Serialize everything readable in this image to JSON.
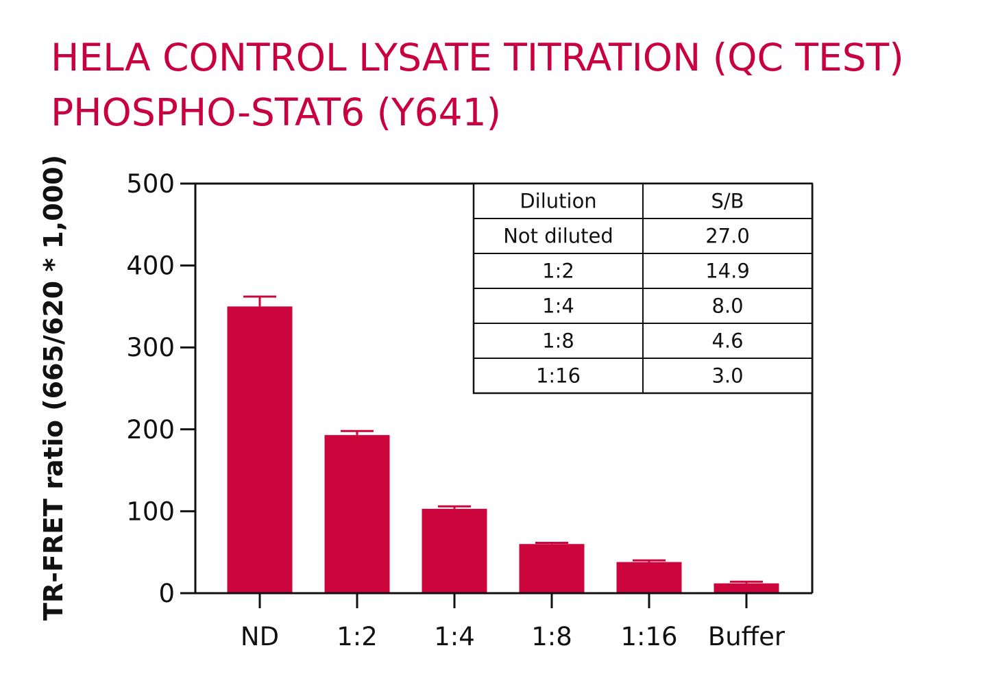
{
  "title_lines": [
    "HELA CONTROL LYSATE TITRATION (QC TEST)",
    "PHOSPHO-STAT6 (Y641)"
  ],
  "colors": {
    "title": "#c8003f",
    "bar": "#cc063d",
    "axis": "#111111"
  },
  "chart_data": {
    "type": "bar",
    "categories": [
      "ND",
      "1:2",
      "1:4",
      "1:8",
      "1:16",
      "Buffer"
    ],
    "values": [
      350,
      193,
      103,
      60,
      38,
      12
    ],
    "errors": [
      12,
      5,
      3,
      1.5,
      2,
      2
    ],
    "ylabel": "TR-FRET ratio (665/620 * 1,000)",
    "ylim": [
      0,
      500
    ],
    "yticks": [
      0,
      100,
      200,
      300,
      400,
      500
    ],
    "grid": false,
    "inset_table": {
      "headers": [
        "Dilution",
        "S/B"
      ],
      "rows": [
        [
          "Not diluted",
          "27.0"
        ],
        [
          "1:2",
          "14.9"
        ],
        [
          "1:4",
          "8.0"
        ],
        [
          "1:8",
          "4.6"
        ],
        [
          "1:16",
          "3.0"
        ]
      ]
    }
  }
}
